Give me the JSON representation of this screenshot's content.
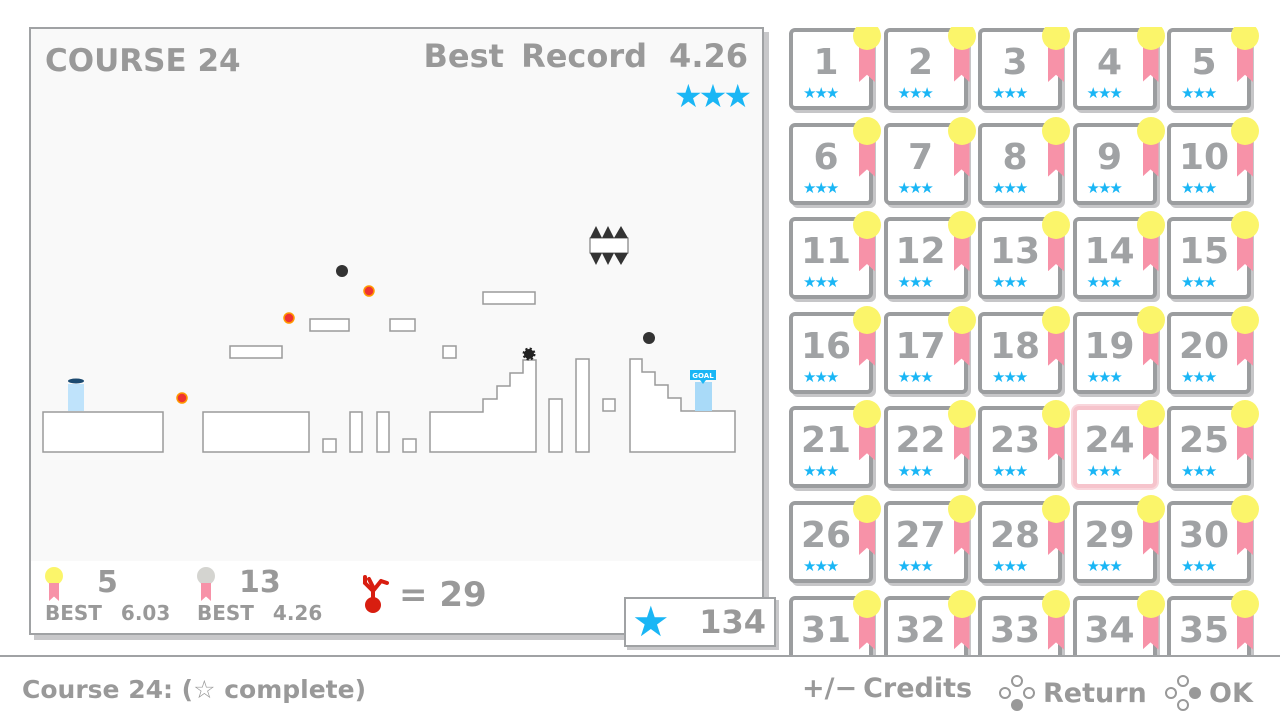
{
  "course": {
    "title": "COURSE 24",
    "best_label": "Best Record",
    "best_value": "4.26",
    "stars": "★★★"
  },
  "footer": {
    "gold_count": "5",
    "gold_best": "BEST 6.03",
    "silver_count": "13",
    "silver_best": "BEST 4.26",
    "deaths": "= 29"
  },
  "star_total": {
    "icon": "star-icon",
    "value": "134"
  },
  "courses": [
    1,
    2,
    3,
    4,
    5,
    6,
    7,
    8,
    9,
    10,
    11,
    12,
    13,
    14,
    15,
    16,
    17,
    18,
    19,
    20,
    21,
    22,
    23,
    24,
    25,
    26,
    27,
    28,
    29,
    30,
    31,
    32,
    33,
    34,
    35
  ],
  "selected_course": 24,
  "tile_stars": "★★★",
  "level": {
    "goal_label": "GOAL"
  },
  "statusbar": {
    "text": "Course 24: (☆ complete)",
    "credits": "Credits",
    "credits_key": "+/−",
    "return": "Return",
    "ok": "OK"
  },
  "colors": {
    "accent_star": "#1ab6f5",
    "gold": "#fbf56a",
    "ribbon": "#f792a8",
    "silver": "#d4d4d0",
    "selected": "#f6c4cc",
    "text": "#999999"
  }
}
